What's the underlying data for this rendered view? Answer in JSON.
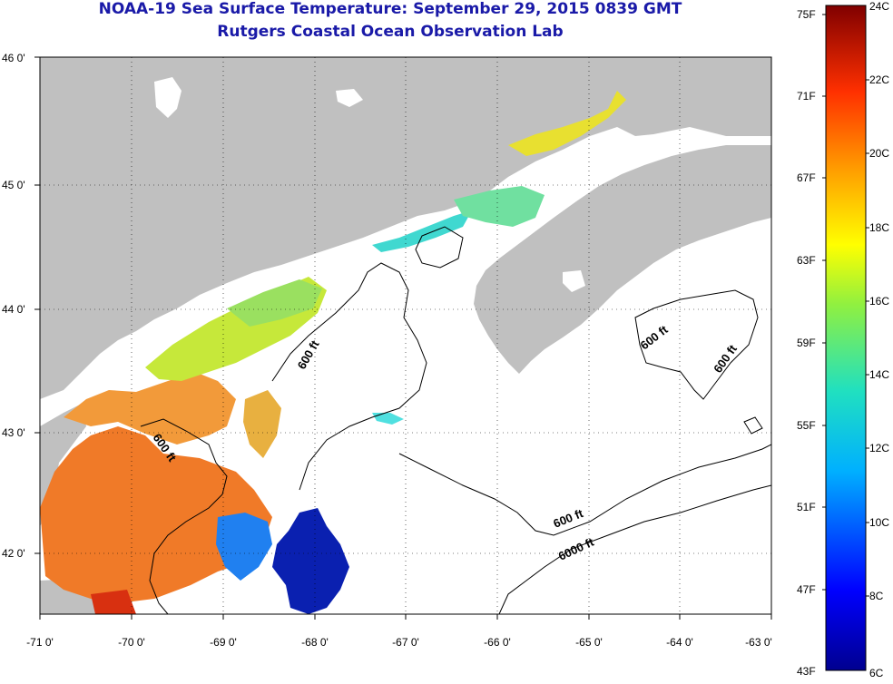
{
  "title": "NOAA-19 Sea Surface Temperature:  September 29, 2015 0839 GMT",
  "subtitle": "Rutgers Coastal Ocean Observation Lab",
  "lat_ticks": [
    "46 0'",
    "45 0'",
    "44 0'",
    "43 0'",
    "42 0'"
  ],
  "lon_ticks": [
    "-71 0'",
    "-70 0'",
    "-69 0'",
    "-68 0'",
    "-67 0'",
    "-66 0'",
    "-65 0'",
    "-64 0'",
    "-63 0'"
  ],
  "contour_labels": [
    "600 ft",
    "600 ft",
    "600 ft",
    "600 ft",
    "600 ft",
    "6000 ft"
  ],
  "colorbar": {
    "fahrenheit": [
      "75F",
      "71F",
      "67F",
      "63F",
      "59F",
      "55F",
      "51F",
      "47F",
      "43F"
    ],
    "celsius": [
      "24C",
      "22C",
      "20C",
      "18C",
      "16C",
      "14C",
      "12C",
      "10C",
      "8C",
      "6C"
    ]
  },
  "colors": {
    "land": "#c0c0c0",
    "title": "#1a1aa8",
    "warm": "#f07020",
    "cold": "#0a20b0"
  }
}
